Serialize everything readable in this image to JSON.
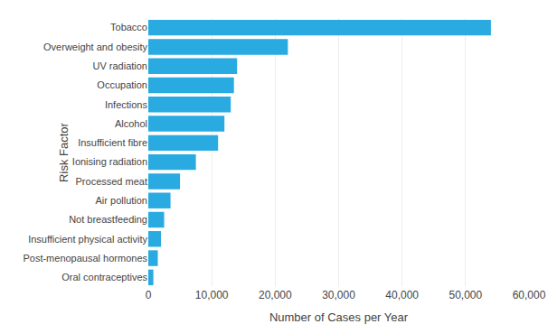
{
  "chart_data": {
    "type": "bar",
    "orientation": "horizontal",
    "categories": [
      "Oral contraceptives",
      "Post-menopausal hormones",
      "Insufficient physical activity",
      "Not breastfeeding",
      "Air pollution",
      "Processed meat",
      "Ionising radiation",
      "Insufficient fibre",
      "Alcohol",
      "Infections",
      "Occupation",
      "UV radiation",
      "Overweight and obesity",
      "Tobacco"
    ],
    "values": [
      800,
      1500,
      2000,
      2500,
      3500,
      5000,
      7500,
      11000,
      12000,
      13000,
      13500,
      14000,
      22000,
      54000
    ],
    "color": "#29ABE2",
    "xlabel": "Number of Cases per Year",
    "ylabel": "Risk Factor",
    "xlim": [
      0,
      60000
    ],
    "xticks": [
      0,
      {
        "value": 10000,
        "label": "10,000"
      },
      {
        "value": 20000,
        "label": "20,000"
      },
      {
        "value": 30000,
        "label": "30,000"
      },
      {
        "value": 40000,
        "label": "40,000"
      },
      {
        "value": 50000,
        "label": "50,000"
      },
      {
        "value": 60000,
        "label": "60,000"
      }
    ],
    "grid": true
  }
}
